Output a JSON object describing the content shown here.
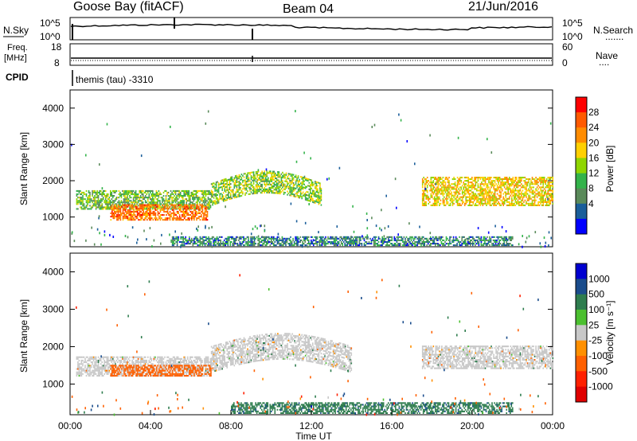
{
  "header": {
    "station": "Goose Bay (fitACF)",
    "beam": "Beam 04",
    "date": "21/Jun/2016"
  },
  "strip_panels": {
    "sky": {
      "left_label": "N.Sky",
      "left_ticks": [
        "10^5",
        "10^0"
      ],
      "right_ticks": [
        "10^5",
        "10^0"
      ],
      "right_label": "N.Search",
      "right_dots": "......."
    },
    "freq": {
      "left_label_top": "Freq.",
      "left_label_bottom": "[MHz]",
      "left_ticks": [
        "18",
        "8"
      ],
      "right_ticks": [
        "60",
        "0"
      ],
      "right_label": "Nave",
      "right_dots": "...."
    },
    "cpid": {
      "left_label": "CPID",
      "value": "themis (tau) -3310"
    }
  },
  "axes": {
    "ylabel": "Slant Range [km]",
    "yticks": [
      "4000",
      "3000",
      "2000",
      "1000"
    ],
    "xticks": [
      "00:00",
      "04:00",
      "08:00",
      "12:00",
      "16:00",
      "20:00",
      "00:00"
    ],
    "xlabel": "Time UT"
  },
  "colorbars": {
    "power": {
      "label": "Power [dB]",
      "ticks": [
        "28",
        "24",
        "20",
        "16",
        "12",
        "8",
        "4"
      ],
      "colors": [
        "#ff0000",
        "#ff5a00",
        "#ff8c00",
        "#ffd000",
        "#8fd600",
        "#33b34a",
        "#5a8a5a",
        "#1a5e9a",
        "#0000ff"
      ]
    },
    "velocity": {
      "label": "Velocity [m s⁻¹]",
      "ticks": [
        "1000",
        "500",
        "100",
        "25",
        "-25",
        "-100",
        "-500",
        "-1000"
      ],
      "colors": [
        "#0000d0",
        "#1a4c8c",
        "#2e7d4e",
        "#4cc030",
        "#c8c8c8",
        "#ff9000",
        "#ff6000",
        "#ff2000",
        "#e00000"
      ]
    }
  },
  "chart_data": {
    "type": "heatmap",
    "x_range_hours": [
      0,
      24
    ],
    "y_range_km": [
      180,
      4500
    ],
    "power_panel": {
      "features": [
        {
          "name": "main echo band",
          "t_start": 0.3,
          "t_end": 7.0,
          "range_km": [
            1200,
            1700
          ],
          "power_db": 10
        },
        {
          "name": "strong patch",
          "t_start": 2.0,
          "t_end": 6.8,
          "range_km": [
            900,
            1350
          ],
          "power_db": 22
        },
        {
          "name": "arc",
          "t_start": 7.0,
          "t_end": 12.5,
          "range_km": [
            1500,
            2300
          ],
          "power_db": 12
        },
        {
          "name": "late band",
          "t_start": 17.5,
          "t_end": 24.0,
          "range_km": [
            1300,
            2100
          ],
          "power_db": 16
        },
        {
          "name": "near-range ground scatter",
          "t_start": 5.0,
          "t_end": 22.0,
          "range_km": [
            200,
            450
          ],
          "power_db": 6
        }
      ]
    },
    "velocity_panel": {
      "features": [
        {
          "name": "main band",
          "t_start": 0.3,
          "t_end": 7.0,
          "range_km": [
            1200,
            1700
          ],
          "velocity": 0
        },
        {
          "name": "fast patch",
          "t_start": 2.0,
          "t_end": 7.0,
          "range_km": [
            1200,
            1500
          ],
          "velocity": -300
        },
        {
          "name": "arc",
          "t_start": 7.0,
          "t_end": 14.0,
          "range_km": [
            1500,
            2400
          ],
          "velocity": 0
        },
        {
          "name": "late band",
          "t_start": 17.5,
          "t_end": 24.0,
          "range_km": [
            1400,
            2000
          ],
          "velocity": 0
        },
        {
          "name": "near-range mixed",
          "t_start": 8.0,
          "t_end": 22.0,
          "range_km": [
            200,
            500
          ],
          "velocity": 200
        }
      ]
    }
  }
}
